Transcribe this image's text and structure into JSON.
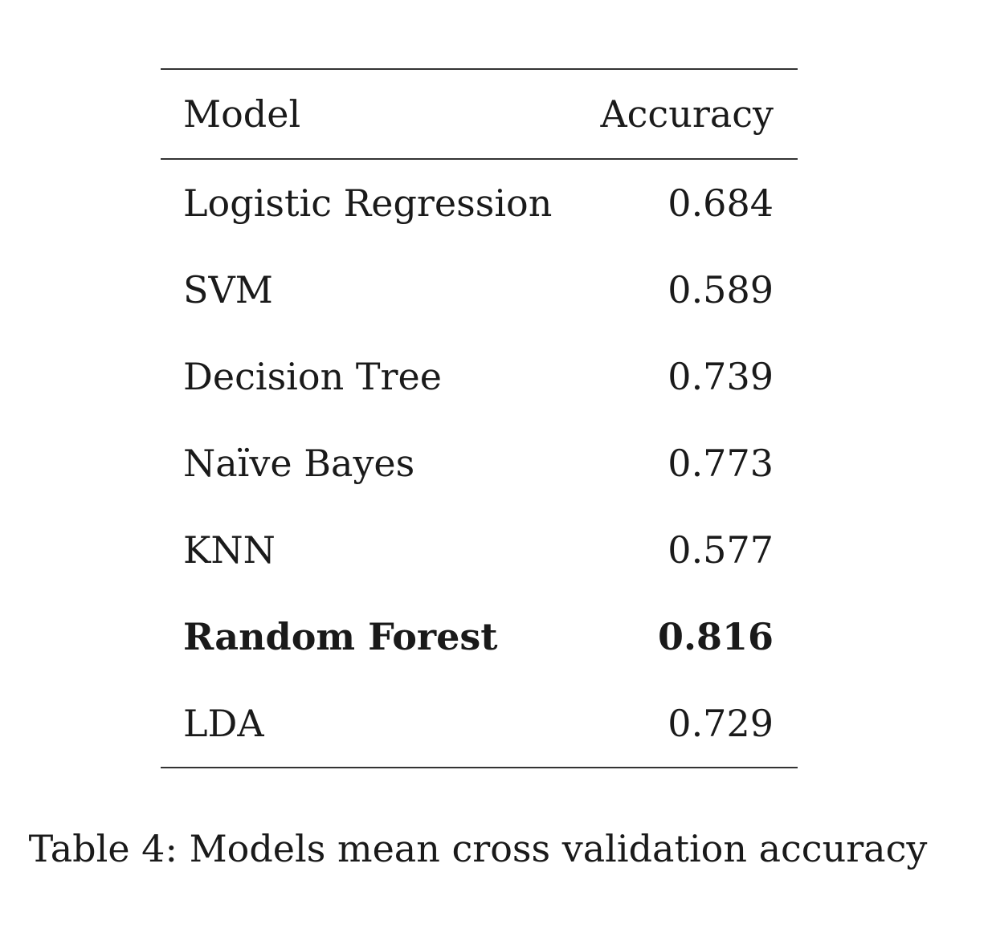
{
  "table": {
    "headers": {
      "model": "Model",
      "accuracy": "Accuracy"
    },
    "rows": [
      {
        "model": "Logistic Regression",
        "accuracy": "0.684",
        "bold": false
      },
      {
        "model": "SVM",
        "accuracy": "0.589",
        "bold": false
      },
      {
        "model": "Decision Tree",
        "accuracy": "0.739",
        "bold": false
      },
      {
        "model": "Naïve Bayes",
        "accuracy": "0.773",
        "bold": false
      },
      {
        "model": "KNN",
        "accuracy": "0.577",
        "bold": false
      },
      {
        "model": "Random Forest",
        "accuracy": "0.816",
        "bold": true
      },
      {
        "model": "LDA",
        "accuracy": "0.729",
        "bold": false
      }
    ]
  },
  "caption": "Table 4: Models mean cross validation accuracy"
}
